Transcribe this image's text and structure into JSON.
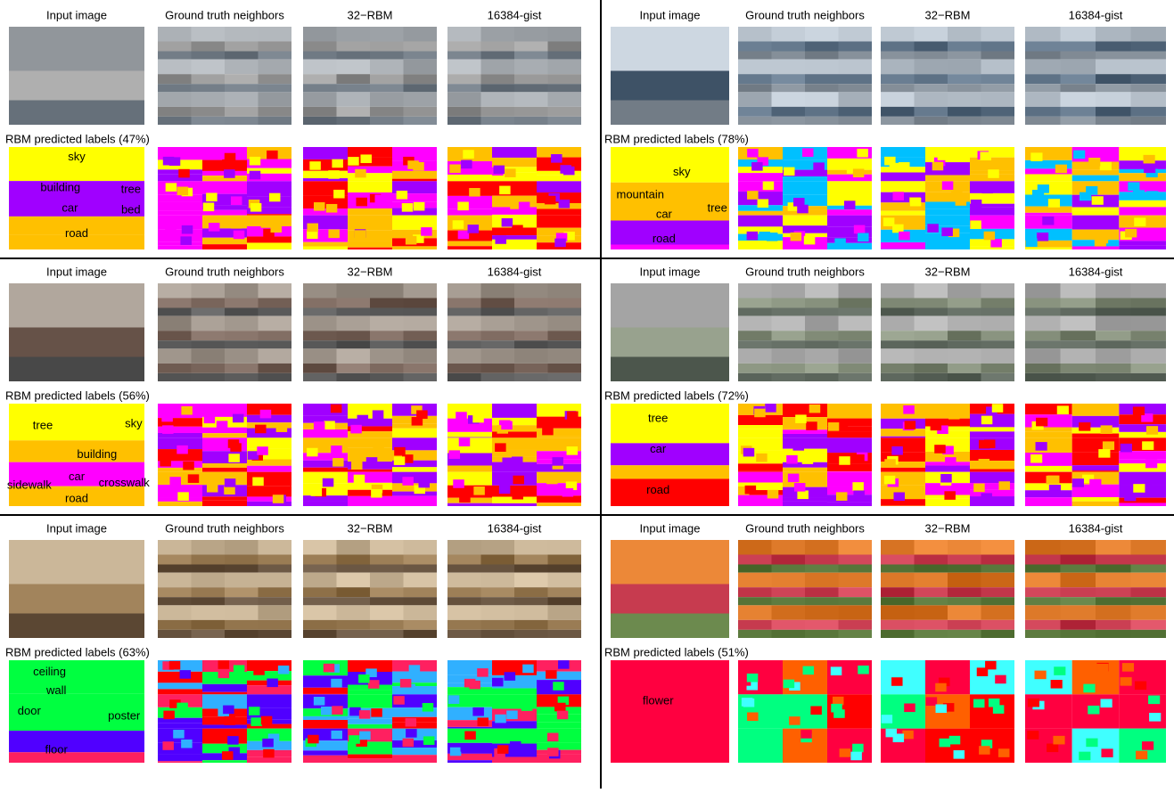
{
  "column_headers": [
    "Input image",
    "Ground truth neighbors",
    "32−RBM",
    "16384-gist"
  ],
  "panels": [
    {
      "caption": "RBM predicted labels (47%)",
      "labels": [
        "sky",
        "building",
        "tree",
        "car",
        "bed",
        "road"
      ]
    },
    {
      "caption": "RBM predicted labels (78%)",
      "labels": [
        "sky",
        "mountain",
        "tree",
        "car",
        "road"
      ]
    },
    {
      "caption": "RBM predicted labels (56%)",
      "labels": [
        "tree",
        "sky",
        "building",
        "car",
        "sidewalk",
        "crosswalk",
        "road"
      ]
    },
    {
      "caption": "RBM predicted labels (72%)",
      "labels": [
        "tree",
        "car",
        "road"
      ]
    },
    {
      "caption": "RBM predicted labels (63%)",
      "labels": [
        "ceiling",
        "wall",
        "door",
        "poster",
        "floor"
      ]
    },
    {
      "caption": "RBM predicted labels (51%)",
      "labels": [
        "flower"
      ]
    }
  ]
}
